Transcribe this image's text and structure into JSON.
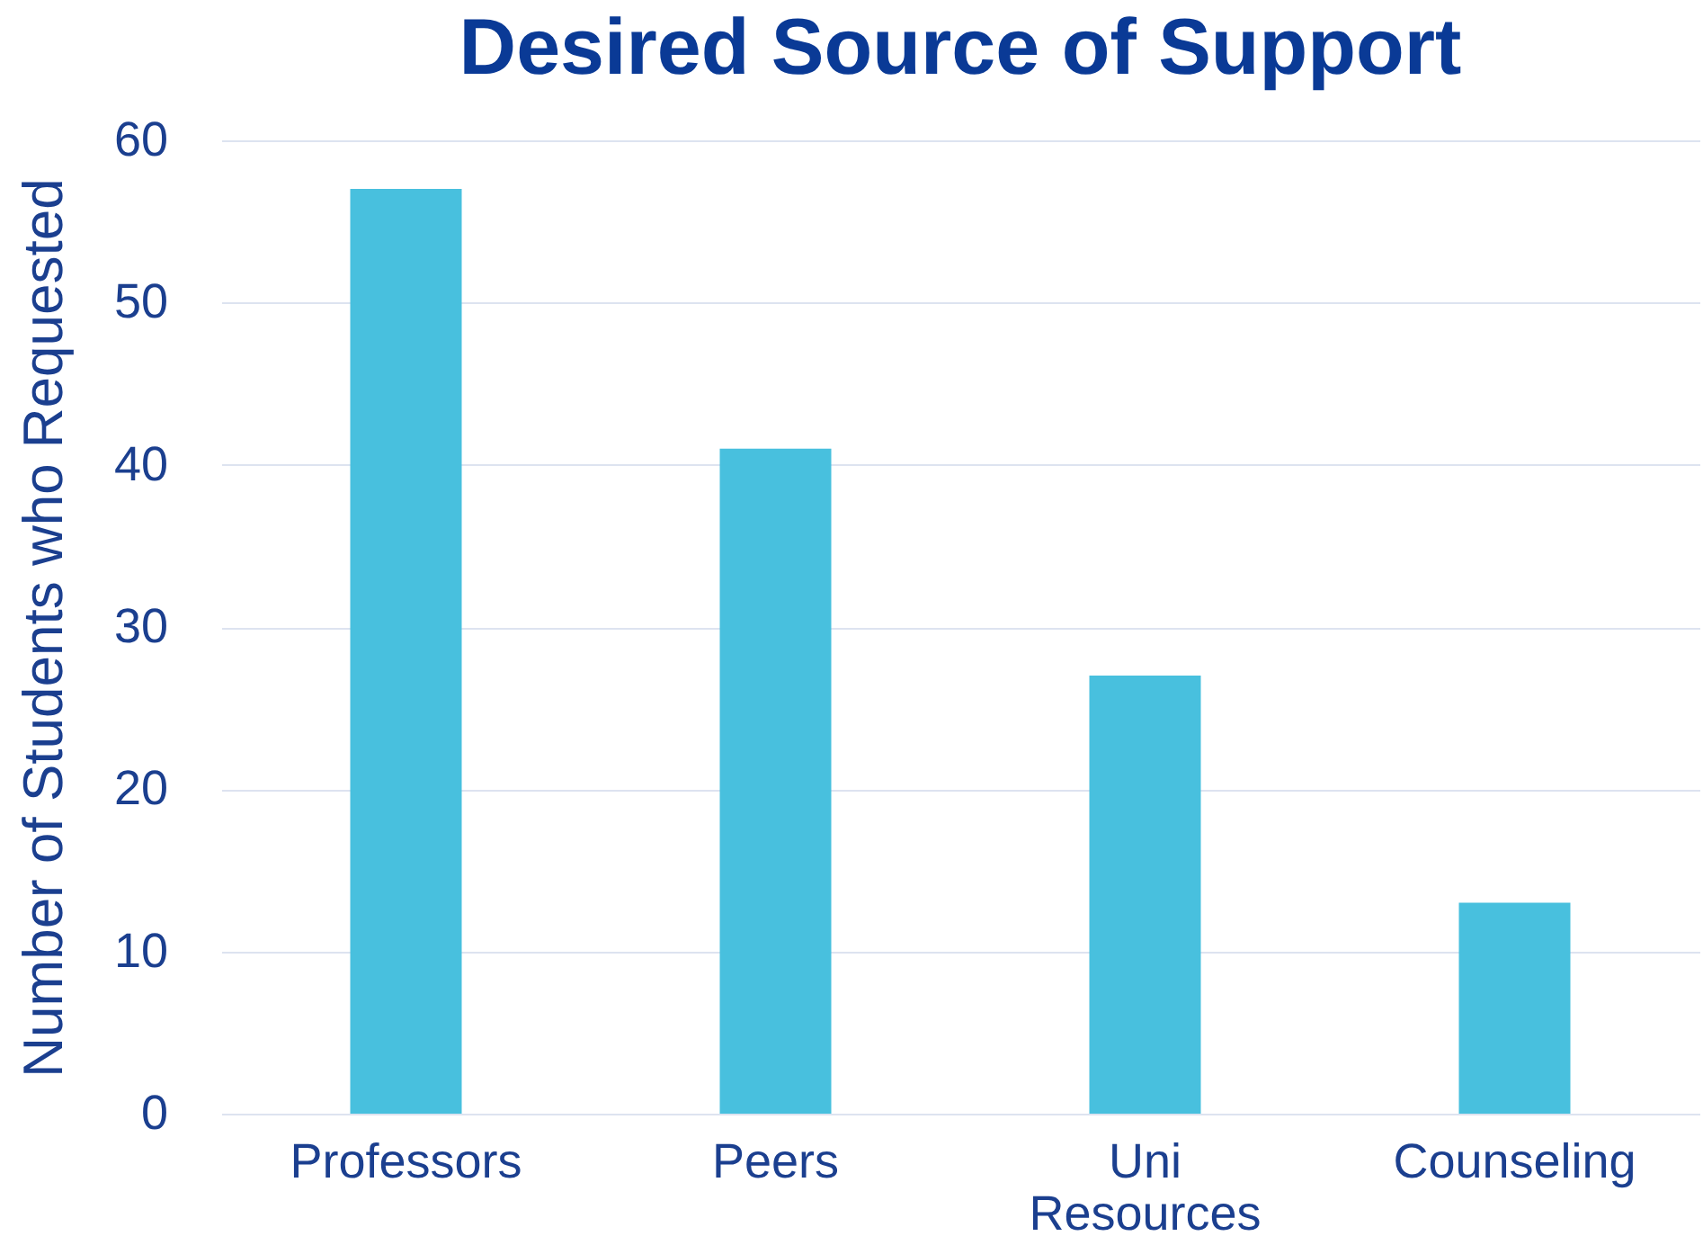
{
  "chart_data": {
    "type": "bar",
    "title": "Desired Source of Support",
    "ylabel": "Number of Students who Requested",
    "categories": [
      "Professors",
      "Peers",
      "Uni Resources",
      "Counseling"
    ],
    "values": [
      57,
      41,
      27,
      13
    ],
    "color": "#48c0de",
    "ylim": [
      0,
      60
    ],
    "yticks": [
      0,
      10,
      20,
      30,
      40,
      50,
      60
    ],
    "grid": "y"
  }
}
